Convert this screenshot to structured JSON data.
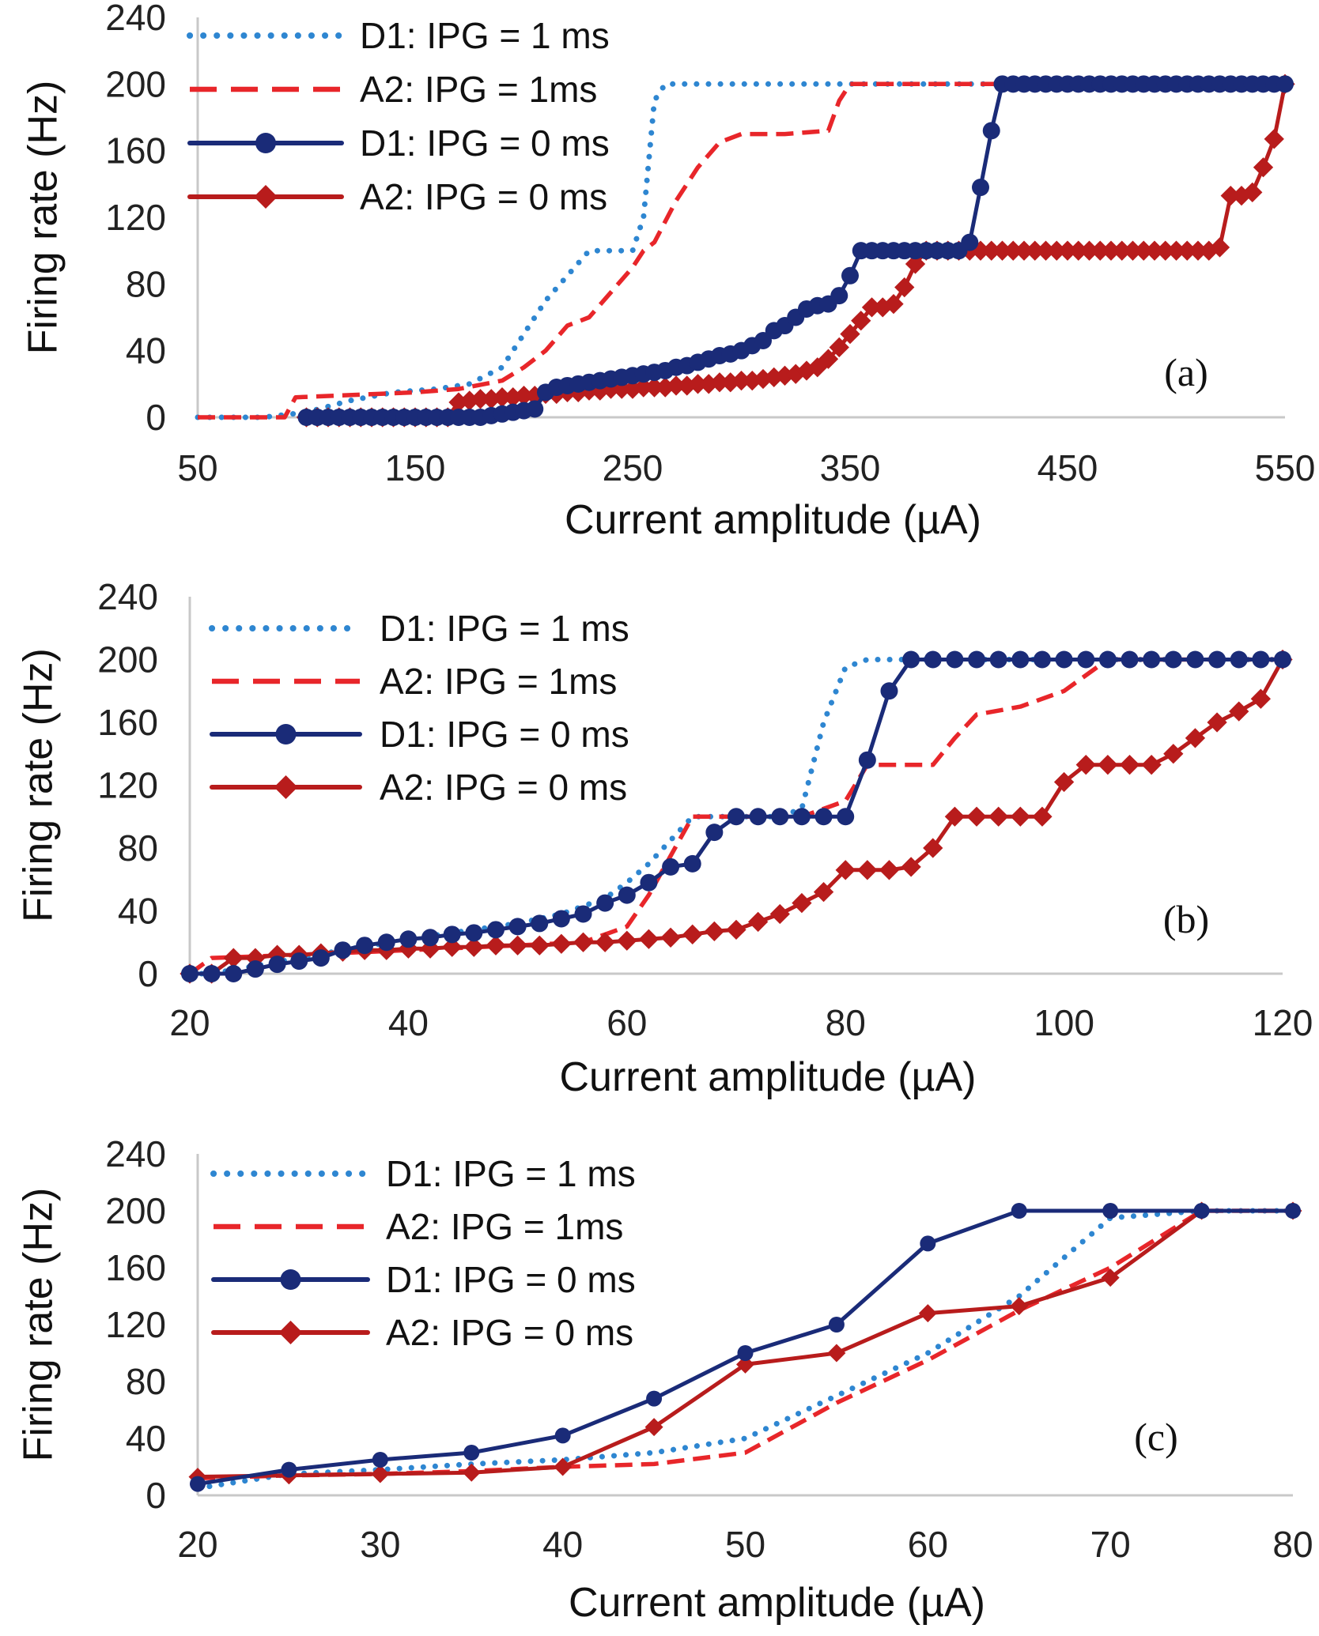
{
  "colors": {
    "D1_IPG_1": "#2E86D1",
    "A2_IPG_1": "#E8262A",
    "D1_IPG_0": "#1A2B78",
    "A2_IPG_0": "#B81C1C",
    "axis": "#c8c8c8"
  },
  "chart_data": [
    {
      "type": "line",
      "panel_label": "(a)",
      "xlabel": "Current amplitude (µA)",
      "ylabel": "Firing rate (Hz)",
      "xlim": [
        50,
        550
      ],
      "ylim": [
        0,
        240
      ],
      "xticks": [
        "50",
        "150",
        "250",
        "350",
        "450",
        "550"
      ],
      "yticks": [
        "0",
        "40",
        "80",
        "120",
        "160",
        "200",
        "240"
      ],
      "legend_position": "top-left",
      "series": [
        {
          "name": "D1: IPG = 1 ms",
          "style": "dotted",
          "marker": "none",
          "x": [
            50,
            80,
            100,
            120,
            140,
            160,
            175,
            190,
            200,
            210,
            220,
            230,
            240,
            250,
            255,
            260,
            265,
            300,
            350,
            550
          ],
          "y": [
            0,
            0,
            3,
            10,
            15,
            17,
            20,
            30,
            50,
            70,
            85,
            100,
            100,
            100,
            120,
            190,
            200,
            200,
            200,
            200
          ]
        },
        {
          "name": "A2: IPG = 1ms",
          "style": "dashed",
          "marker": "none",
          "x": [
            50,
            90,
            95,
            150,
            170,
            190,
            200,
            210,
            220,
            230,
            240,
            250,
            255,
            260,
            270,
            280,
            290,
            300,
            320,
            340,
            345,
            350,
            360,
            550
          ],
          "y": [
            0,
            0,
            12,
            15,
            17,
            22,
            30,
            40,
            55,
            60,
            75,
            90,
            100,
            105,
            130,
            150,
            165,
            170,
            170,
            172,
            190,
            200,
            200,
            200
          ]
        },
        {
          "name": "D1: IPG = 0 ms",
          "style": "solid",
          "marker": "circle",
          "x": [
            100,
            105,
            110,
            115,
            120,
            125,
            130,
            135,
            140,
            145,
            150,
            155,
            160,
            165,
            170,
            175,
            180,
            185,
            190,
            195,
            200,
            205,
            210,
            215,
            220,
            225,
            230,
            235,
            240,
            245,
            250,
            255,
            260,
            265,
            270,
            275,
            280,
            285,
            290,
            295,
            300,
            305,
            310,
            315,
            320,
            325,
            330,
            335,
            340,
            345,
            350,
            355,
            360,
            365,
            370,
            375,
            380,
            385,
            390,
            395,
            400,
            405,
            410,
            415,
            420,
            425,
            430,
            435,
            440,
            445,
            450,
            455,
            460,
            465,
            470,
            475,
            480,
            485,
            490,
            495,
            500,
            505,
            510,
            515,
            520,
            525,
            530,
            535,
            540,
            545,
            550
          ],
          "y": [
            0,
            0,
            0,
            0,
            0,
            0,
            0,
            0,
            0,
            0,
            0,
            0,
            0,
            0,
            0,
            0,
            0,
            1,
            2,
            3,
            4,
            5,
            15,
            18,
            19,
            20,
            21,
            22,
            23,
            24,
            25,
            26,
            27,
            28,
            30,
            31,
            33,
            35,
            37,
            38,
            40,
            43,
            46,
            52,
            55,
            60,
            65,
            67,
            68,
            73,
            85,
            100,
            100,
            100,
            100,
            100,
            100,
            100,
            100,
            100,
            100,
            105,
            138,
            172,
            200,
            200,
            200,
            200,
            200,
            200,
            200,
            200,
            200,
            200,
            200,
            200,
            200,
            200,
            200,
            200,
            200,
            200,
            200,
            200,
            200,
            200,
            200,
            200,
            200,
            200,
            200
          ]
        },
        {
          "name": "A2: IPG = 0 ms",
          "style": "solid",
          "marker": "diamond",
          "x": [
            100,
            105,
            110,
            115,
            120,
            125,
            130,
            135,
            140,
            145,
            150,
            155,
            160,
            165,
            170,
            175,
            180,
            185,
            190,
            195,
            200,
            205,
            210,
            215,
            220,
            225,
            230,
            235,
            240,
            245,
            250,
            255,
            260,
            265,
            270,
            275,
            280,
            285,
            290,
            295,
            300,
            305,
            310,
            315,
            320,
            325,
            330,
            335,
            340,
            345,
            350,
            355,
            360,
            365,
            370,
            375,
            380,
            385,
            390,
            395,
            400,
            405,
            410,
            415,
            420,
            425,
            430,
            435,
            440,
            445,
            450,
            455,
            460,
            465,
            470,
            475,
            480,
            485,
            490,
            495,
            500,
            505,
            510,
            515,
            520,
            525,
            530,
            535,
            540,
            545,
            550
          ],
          "y": [
            0,
            0,
            0,
            0,
            0,
            0,
            0,
            0,
            0,
            0,
            0,
            0,
            0,
            0,
            9,
            10,
            11,
            11,
            12,
            12,
            13,
            13,
            14,
            14,
            15,
            15,
            16,
            16,
            17,
            17,
            17,
            18,
            18,
            18,
            19,
            19,
            20,
            20,
            21,
            21,
            22,
            22,
            23,
            24,
            25,
            26,
            28,
            30,
            35,
            42,
            50,
            58,
            66,
            66,
            68,
            78,
            92,
            100,
            100,
            100,
            100,
            100,
            100,
            100,
            100,
            100,
            100,
            100,
            100,
            100,
            100,
            100,
            100,
            100,
            100,
            100,
            100,
            100,
            100,
            100,
            100,
            100,
            100,
            100,
            102,
            133,
            133,
            135,
            150,
            167,
            200
          ]
        }
      ]
    },
    {
      "type": "line",
      "panel_label": "(b)",
      "xlabel": "Current amplitude (µA)",
      "ylabel": "Firing rate (Hz)",
      "xlim": [
        20,
        120
      ],
      "ylim": [
        0,
        240
      ],
      "xticks": [
        "20",
        "40",
        "60",
        "80",
        "100",
        "120"
      ],
      "yticks": [
        "0",
        "40",
        "80",
        "120",
        "160",
        "200",
        "240"
      ],
      "legend_position": "top-left",
      "series": [
        {
          "name": "D1: IPG = 1 ms",
          "style": "dotted",
          "marker": "none",
          "x": [
            20,
            22,
            26,
            30,
            34,
            40,
            46,
            50,
            54,
            58,
            60,
            62,
            64,
            66,
            70,
            74,
            76,
            78,
            80,
            82,
            86,
            120
          ],
          "y": [
            0,
            0,
            5,
            10,
            15,
            22,
            28,
            32,
            38,
            48,
            58,
            70,
            85,
            100,
            100,
            100,
            105,
            160,
            195,
            200,
            200,
            200
          ]
        },
        {
          "name": "A2: IPG = 1ms",
          "style": "dashed",
          "marker": "none",
          "x": [
            20,
            22,
            30,
            40,
            50,
            56,
            58,
            60,
            62,
            64,
            66,
            68,
            70,
            76,
            80,
            82,
            84,
            86,
            88,
            90,
            92,
            96,
            100,
            104,
            108,
            120
          ],
          "y": [
            0,
            10,
            12,
            15,
            18,
            20,
            25,
            30,
            50,
            75,
            100,
            100,
            100,
            100,
            110,
            133,
            133,
            133,
            133,
            150,
            165,
            170,
            180,
            200,
            200,
            200
          ]
        },
        {
          "name": "D1: IPG = 0 ms",
          "style": "solid",
          "marker": "circle",
          "x": [
            20,
            22,
            24,
            26,
            28,
            30,
            32,
            34,
            36,
            38,
            40,
            42,
            44,
            46,
            48,
            50,
            52,
            54,
            56,
            58,
            60,
            62,
            64,
            66,
            68,
            70,
            72,
            74,
            76,
            78,
            80,
            82,
            84,
            86,
            88,
            90,
            92,
            94,
            96,
            98,
            100,
            102,
            104,
            106,
            108,
            110,
            112,
            114,
            116,
            118,
            120
          ],
          "y": [
            0,
            0,
            0,
            3,
            6,
            8,
            10,
            15,
            18,
            20,
            22,
            23,
            25,
            26,
            28,
            30,
            32,
            35,
            38,
            45,
            50,
            58,
            68,
            70,
            90,
            100,
            100,
            100,
            100,
            100,
            100,
            136,
            180,
            200,
            200,
            200,
            200,
            200,
            200,
            200,
            200,
            200,
            200,
            200,
            200,
            200,
            200,
            200,
            200,
            200,
            200
          ]
        },
        {
          "name": "A2: IPG = 0 ms",
          "style": "solid",
          "marker": "diamond",
          "x": [
            20,
            22,
            24,
            26,
            28,
            30,
            32,
            34,
            36,
            38,
            40,
            42,
            44,
            46,
            48,
            50,
            52,
            54,
            56,
            58,
            60,
            62,
            64,
            66,
            68,
            70,
            72,
            74,
            76,
            78,
            80,
            82,
            84,
            86,
            88,
            90,
            92,
            94,
            96,
            98,
            100,
            102,
            104,
            106,
            108,
            110,
            112,
            114,
            116,
            118,
            120
          ],
          "y": [
            0,
            0,
            10,
            10,
            12,
            12,
            13,
            14,
            15,
            15,
            16,
            16,
            17,
            17,
            18,
            18,
            18,
            19,
            20,
            20,
            21,
            22,
            23,
            25,
            27,
            28,
            33,
            38,
            45,
            52,
            66,
            66,
            66,
            68,
            80,
            100,
            100,
            100,
            100,
            100,
            122,
            133,
            133,
            133,
            133,
            140,
            150,
            160,
            167,
            175,
            200
          ]
        }
      ]
    },
    {
      "type": "line",
      "panel_label": "(c)",
      "xlabel": "Current amplitude (µA)",
      "ylabel": "Firing rate (Hz)",
      "xlim": [
        20,
        80
      ],
      "ylim": [
        0,
        240
      ],
      "xticks": [
        "20",
        "30",
        "40",
        "50",
        "60",
        "70",
        "80"
      ],
      "yticks": [
        "0",
        "40",
        "80",
        "120",
        "160",
        "200",
        "240"
      ],
      "legend_position": "top-left",
      "series": [
        {
          "name": "D1: IPG = 1 ms",
          "style": "dotted",
          "marker": "none",
          "x": [
            20,
            25,
            30,
            35,
            40,
            45,
            50,
            55,
            60,
            65,
            70,
            75,
            80
          ],
          "y": [
            5,
            15,
            18,
            22,
            25,
            30,
            40,
            70,
            100,
            140,
            195,
            200,
            200
          ]
        },
        {
          "name": "A2: IPG = 1ms",
          "style": "dashed",
          "marker": "none",
          "x": [
            20,
            25,
            30,
            35,
            40,
            45,
            50,
            55,
            60,
            65,
            70,
            75,
            80
          ],
          "y": [
            12,
            14,
            15,
            17,
            20,
            22,
            30,
            65,
            95,
            130,
            160,
            200,
            200
          ]
        },
        {
          "name": "D1: IPG = 0 ms",
          "style": "solid",
          "marker": "circle",
          "x": [
            20,
            25,
            30,
            35,
            40,
            45,
            50,
            55,
            60,
            65,
            70,
            75,
            80
          ],
          "y": [
            8,
            18,
            25,
            30,
            42,
            68,
            100,
            120,
            177,
            200,
            200,
            200,
            200
          ]
        },
        {
          "name": "A2: IPG = 0 ms",
          "style": "solid",
          "marker": "diamond",
          "x": [
            20,
            25,
            30,
            35,
            40,
            45,
            50,
            55,
            60,
            65,
            70,
            75,
            80
          ],
          "y": [
            13,
            14,
            15,
            16,
            20,
            48,
            92,
            100,
            128,
            133,
            153,
            200,
            200
          ]
        }
      ]
    }
  ]
}
